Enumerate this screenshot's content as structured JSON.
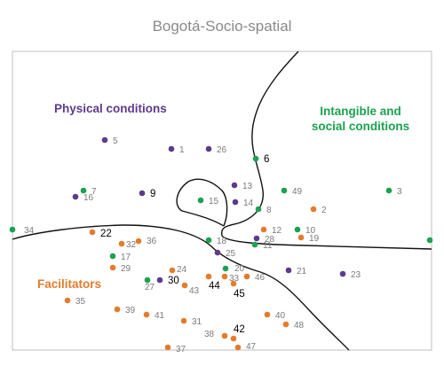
{
  "title": "Bogotá-Socio-spatial",
  "colors": {
    "physical": "#5e3a8c",
    "intangible": "#1aa24f",
    "facilitators": "#e57b2a",
    "frame": "#bfbfbf",
    "boundary": "#111111"
  },
  "regions": {
    "physical": {
      "line1": "Physical conditions"
    },
    "intangible": {
      "line1": "Intangible and",
      "line2": "social conditions"
    },
    "facilitators": {
      "line1": "Facilitators"
    }
  },
  "points": [
    {
      "label": "1",
      "group": "physical"
    },
    {
      "label": "2",
      "group": "facilitators"
    },
    {
      "label": "3",
      "group": "intangible"
    },
    {
      "label": "5",
      "group": "physical"
    },
    {
      "label": "6",
      "group": "intangible",
      "emphasis": true
    },
    {
      "label": "7",
      "group": "intangible"
    },
    {
      "label": "8",
      "group": "intangible"
    },
    {
      "label": "9",
      "group": "physical",
      "emphasis": true
    },
    {
      "label": "10",
      "group": "intangible"
    },
    {
      "label": "11",
      "group": "intangible"
    },
    {
      "label": "12",
      "group": "facilitators"
    },
    {
      "label": "13",
      "group": "physical"
    },
    {
      "label": "14",
      "group": "physical"
    },
    {
      "label": "15",
      "group": "intangible"
    },
    {
      "label": "16",
      "group": "physical"
    },
    {
      "label": "17",
      "group": "intangible"
    },
    {
      "label": "18",
      "group": "intangible"
    },
    {
      "label": "19",
      "group": "facilitators"
    },
    {
      "label": "20",
      "group": "intangible"
    },
    {
      "label": "21",
      "group": "physical"
    },
    {
      "label": "22",
      "group": "facilitators",
      "emphasis": true
    },
    {
      "label": "23",
      "group": "physical"
    },
    {
      "label": "24",
      "group": "facilitators"
    },
    {
      "label": "25",
      "group": "physical"
    },
    {
      "label": "26",
      "group": "physical"
    },
    {
      "label": "27",
      "group": "intangible"
    },
    {
      "label": "28",
      "group": "physical"
    },
    {
      "label": "29",
      "group": "facilitators"
    },
    {
      "label": "30",
      "group": "physical",
      "emphasis": true
    },
    {
      "label": "31",
      "group": "facilitators"
    },
    {
      "label": "32",
      "group": "facilitators"
    },
    {
      "label": "33",
      "group": "facilitators"
    },
    {
      "label": "34",
      "group": "intangible"
    },
    {
      "label": "35",
      "group": "facilitators"
    },
    {
      "label": "36",
      "group": "facilitators"
    },
    {
      "label": "37",
      "group": "facilitators"
    },
    {
      "label": "38",
      "group": "facilitators"
    },
    {
      "label": "39",
      "group": "facilitators"
    },
    {
      "label": "40",
      "group": "facilitators"
    },
    {
      "label": "41",
      "group": "facilitators"
    },
    {
      "label": "42",
      "group": "facilitators",
      "emphasis": true
    },
    {
      "label": "43",
      "group": "facilitators"
    },
    {
      "label": "44",
      "group": "facilitators",
      "emphasis": true
    },
    {
      "label": "45",
      "group": "facilitators",
      "emphasis": true
    },
    {
      "label": "46",
      "group": "facilitators"
    },
    {
      "label": "47",
      "group": "facilitators"
    },
    {
      "label": "48",
      "group": "facilitators"
    },
    {
      "label": "49",
      "group": "intangible"
    },
    {
      "label": "",
      "group": "intangible"
    }
  ]
}
